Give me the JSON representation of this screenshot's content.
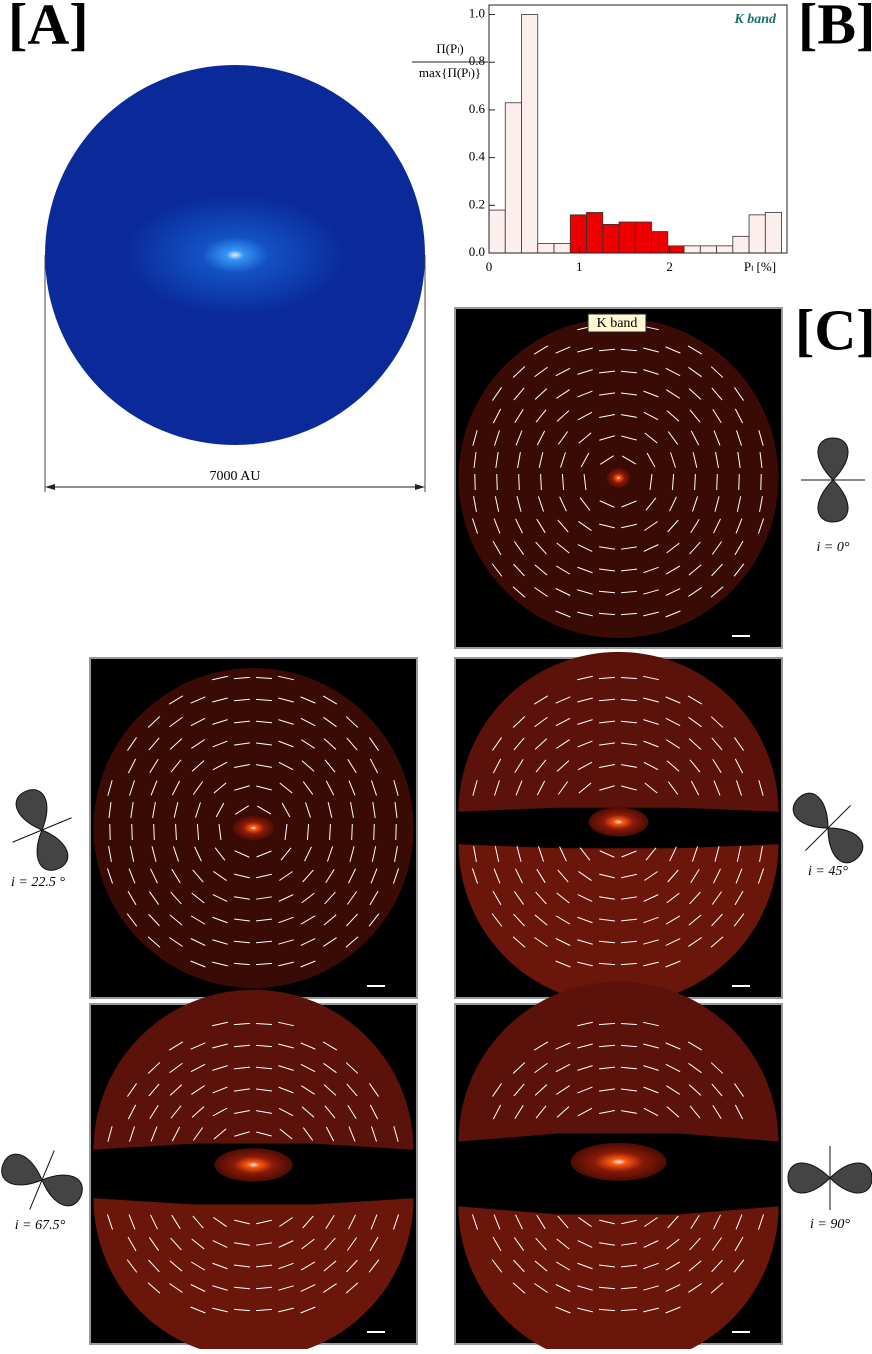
{
  "panel_labels": [
    "[A]",
    "[B]",
    "[C]"
  ],
  "scale_label": "7000 AU",
  "band_label": "K band",
  "inclinations": [
    "i = 0°",
    "i = 22.5 °",
    "i = 45°",
    "i = 67.5°",
    "i = 90°"
  ],
  "chart_data": {
    "type": "histogram",
    "annotation": "K band",
    "xlabel": "Pₗ [%]",
    "ylabel_numerator": "Π(Pₗ)",
    "ylabel_denominator": "max{Π(Pₗ)}",
    "bins": [
      0,
      0.18,
      0.36,
      0.54,
      0.72,
      0.9,
      1.08,
      1.26,
      1.44,
      1.62,
      1.8,
      1.98,
      2.16,
      2.34,
      2.52,
      2.7,
      2.88,
      3.06,
      3.24
    ],
    "values": [
      0.18,
      0.63,
      1.0,
      0.04,
      0.04,
      0.16,
      0.17,
      0.12,
      0.13,
      0.13,
      0.09,
      0.03,
      0.03,
      0.03,
      0.03,
      0.07,
      0.16,
      0.17
    ],
    "colors": [
      "#fdeeee",
      "#fdeeee",
      "#fdeeee",
      "#fdeeee",
      "#fdeeee",
      "#ee0000",
      "#ee0000",
      "#ee0000",
      "#ee0000",
      "#ee0000",
      "#ee0000",
      "#ee0000",
      "#fdeeee",
      "#fdeeee",
      "#fdeeee",
      "#fdeeee",
      "#fdeeee",
      "#fdeeee"
    ],
    "xlim": [
      0,
      3.3
    ],
    "ylim": [
      0,
      1.04
    ],
    "xticks": [
      0,
      1,
      2
    ],
    "yticks": [
      {
        "value": 0,
        "label": "0.0"
      },
      0.2,
      0.4,
      0.6,
      0.8,
      {
        "value": 1,
        "label": "1.0"
      }
    ]
  }
}
